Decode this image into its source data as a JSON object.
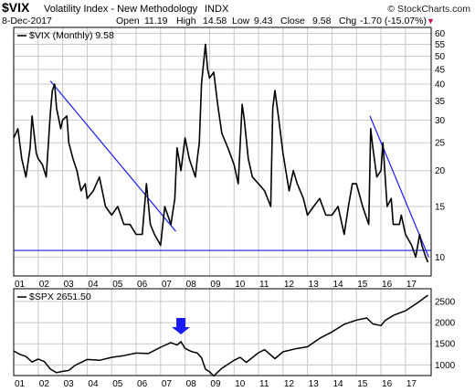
{
  "header": {
    "symbol": "$VIX",
    "name": "Volatility Index - New Methodology",
    "exchange": "INDX",
    "date": "8-Dec-2017",
    "open_label": "Open",
    "open": "11.19",
    "high_label": "High",
    "high": "14.58",
    "low_label": "Low",
    "low": "9.43",
    "close_label": "Close",
    "close": "9.58",
    "chg_label": "Chg",
    "chg": "-1.70 (-15.07%)",
    "watermark": "© StockCharts.com",
    "chg_marker": "▼"
  },
  "colors": {
    "price_line": "#000000",
    "trend_line": "#1a1aff",
    "arrow": "#1a1aff",
    "grid": "#c8c8c8",
    "chg_marker": "#cc0055",
    "frame": "#000000"
  },
  "chart_data": [
    {
      "type": "line",
      "legend": "$VIX (Monthly) 9.58",
      "scale": "log",
      "ylim": [
        8.6,
        63
      ],
      "yticks": [
        10,
        15,
        20,
        25,
        30,
        35,
        40,
        45,
        50,
        55,
        60
      ],
      "xlim": [
        2001.0,
        2018.05
      ],
      "xticks": [
        "01",
        "02",
        "03",
        "04",
        "05",
        "06",
        "07",
        "08",
        "09",
        "10",
        "11",
        "12",
        "13",
        "14",
        "15",
        "16",
        "17"
      ],
      "grid": true,
      "series": [
        {
          "x": [
            2001.0,
            2001.17,
            2001.33,
            2001.5,
            2001.67,
            2001.75,
            2001.92,
            2002.0,
            2002.17,
            2002.33,
            2002.5,
            2002.58,
            2002.67,
            2002.75,
            2002.92,
            2003.0,
            2003.17,
            2003.25,
            2003.42,
            2003.58,
            2003.75,
            2003.92,
            2004.0,
            2004.25,
            2004.5,
            2004.75,
            2005.0,
            2005.25,
            2005.5,
            2005.75,
            2006.0,
            2006.25,
            2006.42,
            2006.58,
            2006.75,
            2007.0,
            2007.17,
            2007.42,
            2007.58,
            2007.67,
            2007.83,
            2008.0,
            2008.17,
            2008.42,
            2008.5,
            2008.58,
            2008.67,
            2008.83,
            2008.92,
            2009.0,
            2009.17,
            2009.33,
            2009.5,
            2009.75,
            2010.0,
            2010.17,
            2010.33,
            2010.42,
            2010.58,
            2010.75,
            2011.0,
            2011.25,
            2011.5,
            2011.58,
            2011.67,
            2011.83,
            2012.0,
            2012.25,
            2012.42,
            2012.58,
            2012.83,
            2013.0,
            2013.25,
            2013.5,
            2013.75,
            2014.0,
            2014.25,
            2014.5,
            2014.67,
            2014.83,
            2015.0,
            2015.25,
            2015.5,
            2015.58,
            2015.67,
            2015.83,
            2016.0,
            2016.08,
            2016.25,
            2016.42,
            2016.5,
            2016.75,
            2016.83,
            2017.0,
            2017.25,
            2017.42,
            2017.58,
            2017.67,
            2017.83,
            2017.92
          ],
          "values": [
            26,
            28,
            22,
            19,
            24,
            31,
            23,
            22,
            21,
            19,
            32,
            38,
            40,
            33,
            28,
            30,
            31,
            25,
            22,
            20,
            17,
            18,
            16,
            17,
            19,
            15,
            14,
            15,
            13,
            13,
            12,
            12,
            18,
            13,
            12,
            11,
            15,
            13,
            16,
            24,
            20,
            26,
            22,
            19,
            22,
            25,
            40,
            55,
            45,
            42,
            44,
            34,
            27,
            24,
            21,
            18,
            34,
            30,
            22,
            19,
            18,
            17,
            15,
            33,
            38,
            30,
            23,
            17,
            20,
            18,
            16,
            14,
            15,
            16,
            14,
            14,
            15,
            12,
            15,
            18,
            18,
            15,
            13,
            28,
            24,
            19,
            20,
            25,
            15,
            16,
            13,
            13,
            14,
            12,
            11,
            10,
            12,
            11,
            10,
            9.6
          ]
        }
      ],
      "trend_lines": [
        {
          "x": [
            2002.5,
            2007.62
          ],
          "values": [
            41,
            12.3
          ]
        },
        {
          "x": [
            2015.55,
            2017.95
          ],
          "values": [
            31,
            10.0
          ]
        },
        {
          "x": [
            2001.0,
            2018.05
          ],
          "values": [
            10.55,
            10.55
          ]
        }
      ]
    },
    {
      "type": "line",
      "legend": "$SPX 2651.50",
      "ylim": [
        750,
        2800
      ],
      "yticks": [
        1000,
        1500,
        2000,
        2500
      ],
      "xlim": [
        2001.0,
        2018.05
      ],
      "xticks": [
        "01",
        "02",
        "03",
        "04",
        "05",
        "06",
        "07",
        "08",
        "09",
        "10",
        "11",
        "12",
        "13",
        "14",
        "15",
        "16",
        "17"
      ],
      "grid": true,
      "series": [
        {
          "x": [
            2001.0,
            2001.25,
            2001.5,
            2001.75,
            2002.0,
            2002.25,
            2002.5,
            2002.75,
            2003.0,
            2003.25,
            2003.5,
            2004.0,
            2004.5,
            2005.0,
            2005.5,
            2006.0,
            2006.5,
            2007.0,
            2007.42,
            2007.67,
            2007.83,
            2008.0,
            2008.25,
            2008.5,
            2008.67,
            2008.83,
            2009.0,
            2009.17,
            2009.5,
            2010.0,
            2010.25,
            2010.5,
            2011.0,
            2011.25,
            2011.67,
            2012.0,
            2012.5,
            2013.0,
            2013.5,
            2014.0,
            2014.5,
            2015.0,
            2015.42,
            2015.67,
            2016.0,
            2016.17,
            2016.5,
            2017.0,
            2017.5,
            2017.92
          ],
          "values": [
            1330,
            1250,
            1200,
            1070,
            1140,
            1080,
            900,
            820,
            850,
            870,
            990,
            1130,
            1110,
            1180,
            1220,
            1280,
            1270,
            1420,
            1530,
            1470,
            1550,
            1390,
            1320,
            1280,
            1170,
            900,
            840,
            740,
            920,
            1110,
            1180,
            1060,
            1290,
            1360,
            1150,
            1310,
            1380,
            1430,
            1630,
            1780,
            1960,
            2060,
            2110,
            1970,
            1930,
            2050,
            2170,
            2280,
            2470,
            2650
          ]
        }
      ],
      "annotations": [
        {
          "type": "arrow-down",
          "x": 2007.83,
          "value": 1720
        }
      ]
    }
  ]
}
